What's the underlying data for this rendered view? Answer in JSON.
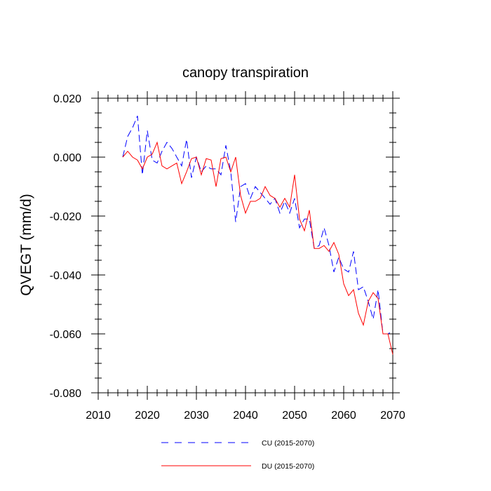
{
  "chart_data": {
    "type": "line",
    "title": "canopy transpiration",
    "ylabel": "QVEGT  (mm/d)",
    "xlabel": "",
    "xlim": [
      2010,
      2070
    ],
    "ylim": [
      -0.08,
      0.02
    ],
    "x_ticks": [
      2010,
      2020,
      2030,
      2040,
      2050,
      2060,
      2070
    ],
    "x_tick_labels": [
      "2010",
      "2020",
      "2030",
      "2040",
      "2050",
      "2060",
      "2070"
    ],
    "y_ticks": [
      0.02,
      0.0,
      -0.02,
      -0.04,
      -0.06,
      -0.08
    ],
    "y_tick_labels": [
      "0.020",
      "0.000",
      "-0.020",
      "-0.040",
      "-0.060",
      "-0.080"
    ],
    "grid": false,
    "legend_position": "bottom-center",
    "x": [
      2015,
      2016,
      2017,
      2018,
      2019,
      2020,
      2021,
      2022,
      2023,
      2024,
      2025,
      2026,
      2027,
      2028,
      2029,
      2030,
      2031,
      2032,
      2033,
      2034,
      2035,
      2036,
      2037,
      2038,
      2039,
      2040,
      2041,
      2042,
      2043,
      2044,
      2045,
      2046,
      2047,
      2048,
      2049,
      2050,
      2051,
      2052,
      2053,
      2054,
      2055,
      2056,
      2057,
      2058,
      2059,
      2060,
      2061,
      2062,
      2063,
      2064,
      2065,
      2066,
      2067,
      2068,
      2069,
      2070
    ],
    "series": [
      {
        "name": "CU (2015-2070)",
        "color": "#0000ff",
        "dash": "dashed",
        "values": [
          0.0,
          0.007,
          0.01,
          0.014,
          -0.006,
          0.009,
          -0.001,
          -0.002,
          0.002,
          0.005,
          0.003,
          0.0,
          -0.003,
          0.006,
          -0.007,
          0.0,
          -0.005,
          -0.003,
          -0.004,
          -0.004,
          -0.006,
          0.004,
          -0.005,
          -0.022,
          -0.01,
          -0.009,
          -0.014,
          -0.01,
          -0.012,
          -0.014,
          -0.016,
          -0.014,
          -0.019,
          -0.015,
          -0.019,
          -0.014,
          -0.024,
          -0.021,
          -0.021,
          -0.031,
          -0.03,
          -0.024,
          -0.03,
          -0.039,
          -0.034,
          -0.038,
          -0.039,
          -0.032,
          -0.045,
          -0.044,
          -0.049,
          -0.055,
          -0.045,
          -0.06,
          -0.06,
          -0.059
        ]
      },
      {
        "name": "DU (2015-2070)",
        "color": "#ff0000",
        "dash": "solid",
        "values": [
          0.0,
          0.002,
          0.0,
          -0.001,
          -0.004,
          0.0,
          0.001,
          0.005,
          -0.003,
          -0.004,
          -0.003,
          -0.002,
          -0.009,
          -0.005,
          -0.0005,
          0.0,
          -0.006,
          -0.0005,
          -0.001,
          -0.01,
          -0.0005,
          0.0,
          -0.005,
          0.0,
          -0.013,
          -0.019,
          -0.015,
          -0.015,
          -0.014,
          -0.01,
          -0.013,
          -0.014,
          -0.017,
          -0.014,
          -0.017,
          -0.006,
          -0.021,
          -0.025,
          -0.018,
          -0.031,
          -0.031,
          -0.03,
          -0.032,
          -0.029,
          -0.033,
          -0.043,
          -0.047,
          -0.045,
          -0.053,
          -0.057,
          -0.049,
          -0.046,
          -0.048,
          -0.06,
          -0.06,
          -0.067
        ]
      }
    ]
  }
}
